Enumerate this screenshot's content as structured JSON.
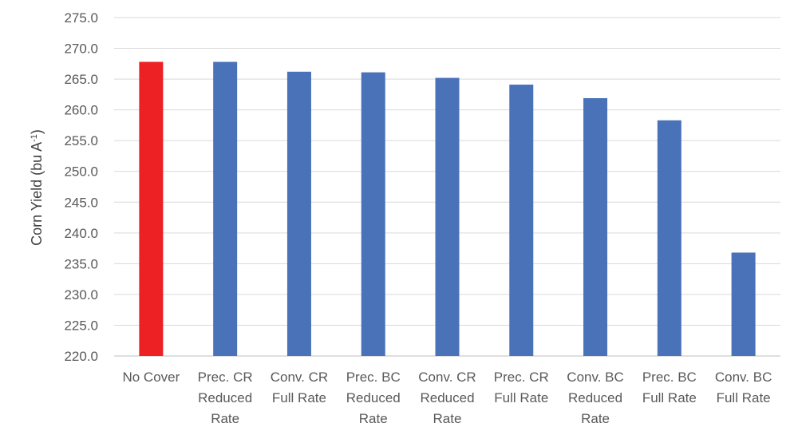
{
  "chart_data": {
    "type": "bar",
    "categories": [
      [
        "No Cover"
      ],
      [
        "Prec. CR",
        "Reduced",
        "Rate"
      ],
      [
        "Conv. CR",
        "Full Rate"
      ],
      [
        "Prec. BC",
        "Reduced",
        "Rate"
      ],
      [
        "Conv. CR",
        "Reduced",
        "Rate"
      ],
      [
        "Prec. CR",
        "Full Rate"
      ],
      [
        "Conv. BC",
        "Reduced",
        "Rate"
      ],
      [
        "Prec. BC",
        "Full Rate"
      ],
      [
        "Conv. BC",
        "Full Rate"
      ]
    ],
    "values": [
      267.8,
      267.8,
      266.2,
      266.1,
      265.2,
      264.1,
      261.9,
      258.3,
      236.8
    ],
    "bar_colors": [
      "#ED2024",
      "#4A72B8",
      "#4A72B8",
      "#4A72B8",
      "#4A72B8",
      "#4A72B8",
      "#4A72B8",
      "#4A72B8",
      "#4A72B8"
    ],
    "ylabel": "Corn Yield (bu A",
    "ylabel_sup": "-1",
    "ylabel_suffix": ")",
    "ylim": [
      220,
      275
    ],
    "ytick_step": 5,
    "ytick_labels": [
      "220.0",
      "225.0",
      "230.0",
      "235.0",
      "240.0",
      "245.0",
      "250.0",
      "255.0",
      "260.0",
      "265.0",
      "270.0",
      "275.0"
    ],
    "grid": true,
    "legend": "none"
  }
}
